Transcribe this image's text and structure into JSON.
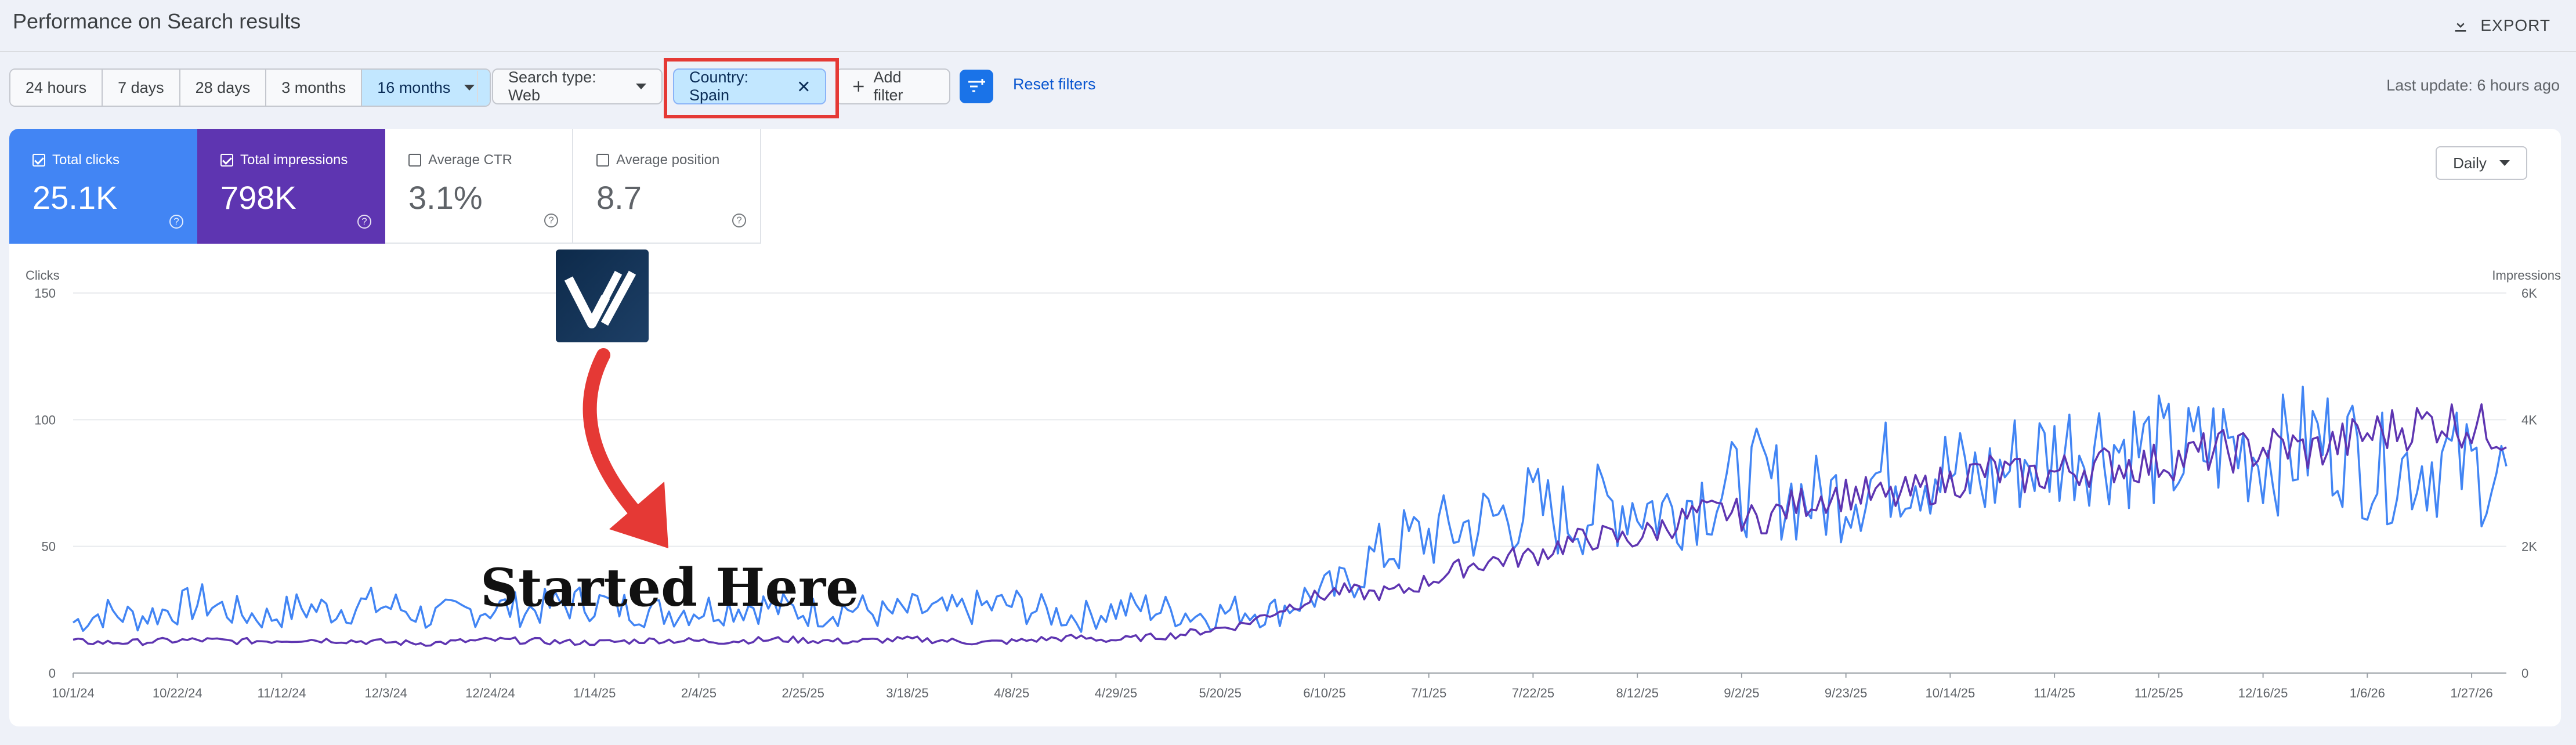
{
  "header": {
    "title": "Performance on Search results",
    "export_label": "EXPORT"
  },
  "date_ranges": {
    "options": [
      "24 hours",
      "7 days",
      "28 days",
      "3 months",
      "16 months"
    ],
    "selected": "16 months"
  },
  "filters": {
    "search_type": "Search type: Web",
    "country": "Country: Spain",
    "add_filter": "Add filter",
    "reset": "Reset filters",
    "last_update": "Last update: 6 hours ago"
  },
  "metrics": [
    {
      "label": "Total clicks",
      "value": "25.1K",
      "checked": true,
      "color": "#4285f4"
    },
    {
      "label": "Total impressions",
      "value": "798K",
      "checked": true,
      "color": "#5e35b1"
    },
    {
      "label": "Average CTR",
      "value": "3.1%",
      "checked": false
    },
    {
      "label": "Average position",
      "value": "8.7",
      "checked": false
    }
  ],
  "granularity": "Daily",
  "annotation": {
    "text": "Started Here",
    "arrow_color": "#e53935"
  },
  "colors": {
    "clicks": "#4285f4",
    "impressions": "#5e35b1",
    "highlight": "#e53935",
    "accent": "#1a73e8"
  },
  "chart_data": {
    "type": "line",
    "y_left_label": "Clicks",
    "y_right_label": "Impressions",
    "y_left_ticks": [
      "0",
      "50",
      "100",
      "150"
    ],
    "y_right_ticks": [
      "0",
      "2K",
      "4K",
      "6K"
    ],
    "ylim_left": [
      0,
      150
    ],
    "ylim_right": [
      0,
      6000
    ],
    "x_ticks": [
      "10/1/24",
      "10/22/24",
      "11/12/24",
      "12/3/24",
      "12/24/24",
      "1/14/25",
      "2/4/25",
      "2/25/25",
      "3/18/25",
      "4/8/25",
      "4/29/25",
      "5/20/25",
      "6/10/25",
      "7/1/25",
      "7/22/25",
      "8/12/25",
      "9/2/25",
      "9/23/25",
      "10/14/25",
      "11/4/25",
      "11/25/25",
      "12/16/25",
      "1/6/26",
      "1/27/26"
    ],
    "x_range": [
      "10/1/24",
      "2/2/26"
    ],
    "series": [
      {
        "name": "Total clicks",
        "axis": "left",
        "weekly_values": [
          20,
          24,
          22,
          25,
          28,
          24,
          22,
          26,
          25,
          27,
          26,
          22,
          24,
          26,
          25,
          27,
          28,
          26,
          24,
          25,
          26,
          27,
          25,
          24,
          26,
          23,
          25,
          24,
          26,
          27,
          24,
          22,
          25,
          26,
          24,
          23,
          25,
          24,
          30,
          33,
          45,
          52,
          55,
          58,
          62,
          66,
          60,
          65,
          68,
          64,
          70,
          72,
          76,
          70,
          68,
          74,
          80,
          82,
          78,
          76,
          84,
          86,
          92,
          90,
          88,
          84,
          90,
          88,
          86,
          92,
          90,
          80,
          82,
          84,
          80,
          78
        ]
      },
      {
        "name": "Total impressions",
        "axis": "right",
        "weekly_values": [
          500,
          480,
          490,
          510,
          520,
          500,
          510,
          530,
          520,
          500,
          480,
          470,
          500,
          520,
          510,
          490,
          480,
          500,
          520,
          510,
          500,
          520,
          530,
          510,
          500,
          520,
          530,
          510,
          480,
          500,
          540,
          560,
          520,
          560,
          600,
          680,
          760,
          960,
          1150,
          1300,
          1250,
          1300,
          1500,
          1700,
          1800,
          1850,
          2050,
          2150,
          2100,
          2300,
          2500,
          2550,
          2400,
          2650,
          2800,
          2850,
          2750,
          2900,
          3050,
          3200,
          3100,
          3150,
          3250,
          3300,
          3300,
          3400,
          3500,
          3500,
          3600,
          3500,
          3650,
          3800,
          3900,
          4000,
          3900,
          3800
        ]
      }
    ]
  }
}
